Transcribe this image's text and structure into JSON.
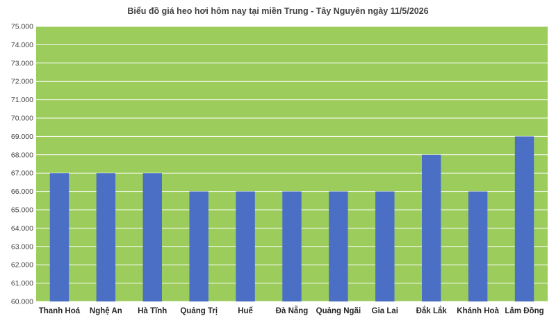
{
  "chart_data": {
    "type": "bar",
    "title": "Biểu đồ giá heo hơi hôm nay tại miền Trung - Tây Nguyên ngày 11/5/2026",
    "xlabel": "",
    "ylabel": "",
    "categories": [
      "Thanh Hoá",
      "Nghệ An",
      "Hà Tĩnh",
      "Quảng Trị",
      "Huế",
      "Đà Nẵng",
      "Quảng Ngãi",
      "Gia Lai",
      "Đắk Lắk",
      "Khánh Hoà",
      "Lâm Đồng"
    ],
    "values": [
      67000,
      67000,
      67000,
      66000,
      66000,
      66000,
      66000,
      66000,
      68000,
      66000,
      69000
    ],
    "ylim": [
      60000,
      75000
    ],
    "yticks": [
      60000,
      61000,
      62000,
      63000,
      64000,
      65000,
      66000,
      67000,
      68000,
      69000,
      70000,
      71000,
      72000,
      73000,
      74000,
      75000
    ],
    "ytick_labels": [
      "60.000",
      "61.000",
      "62.000",
      "63.000",
      "64.000",
      "65.000",
      "66.000",
      "67.000",
      "68.000",
      "69.000",
      "70.000",
      "71.000",
      "72.000",
      "73.000",
      "74.000",
      "75.000"
    ],
    "grid": true,
    "legend": "none",
    "colors": {
      "plot_background": "#9ccc5c",
      "bar": "#4a6fc4",
      "gridline": "#ffffff",
      "text": "#404040"
    }
  }
}
